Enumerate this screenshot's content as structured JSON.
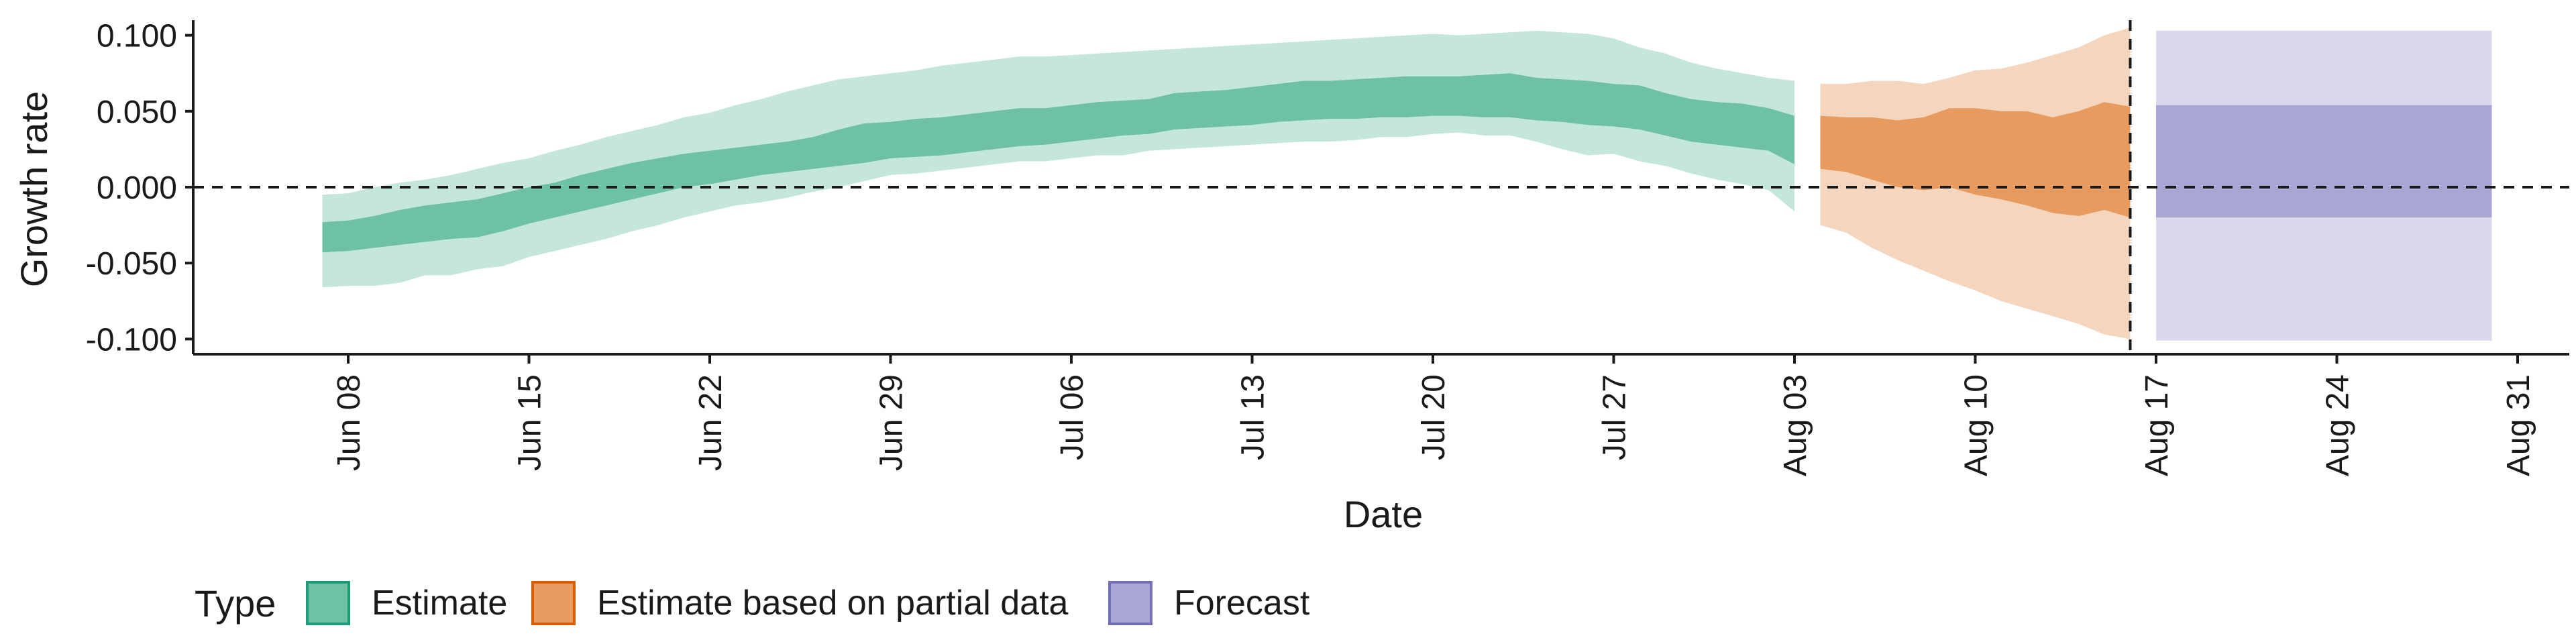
{
  "chart_data": {
    "type": "area",
    "ylabel": "Growth rate",
    "xlabel": "Date",
    "ylim": [
      -0.11,
      0.11
    ],
    "xlim": [
      "2020-06-02",
      "2020-09-02"
    ],
    "y_ticks": [
      0.1,
      0.05,
      0.0,
      -0.05,
      -0.1
    ],
    "y_tick_labels": [
      "0.100",
      "0.050",
      "0.000",
      "-0.050",
      "-0.100"
    ],
    "x_ticks": [
      "2020-06-08",
      "2020-06-15",
      "2020-06-22",
      "2020-06-29",
      "2020-07-06",
      "2020-07-13",
      "2020-07-20",
      "2020-07-27",
      "2020-08-03",
      "2020-08-10",
      "2020-08-17",
      "2020-08-24",
      "2020-08-31"
    ],
    "x_tick_labels": [
      "Jun 08",
      "Jun 15",
      "Jun 22",
      "Jun 29",
      "Jul 06",
      "Jul 13",
      "Jul 20",
      "Jul 27",
      "Aug 03",
      "Aug 10",
      "Aug 17",
      "Aug 24",
      "Aug 31"
    ],
    "reference_lines": {
      "horizontal_y": 0.0,
      "vertical_x": "2020-08-16"
    },
    "grid": false,
    "legend": {
      "title": "Type",
      "position": "bottom-left",
      "items": [
        {
          "label": "Estimate",
          "color": "#6fc1a5",
          "border": "#1b9e77"
        },
        {
          "label": "Estimate based on partial data",
          "color": "#e89b5e",
          "border": "#d95f02"
        },
        {
          "label": "Forecast",
          "color": "#a8a6d3",
          "border": "#7570b3"
        }
      ]
    },
    "series": [
      {
        "name": "Estimate",
        "color_inner": "#6fc1a5",
        "color_outer": "#c4e6db",
        "x": [
          "2020-06-07",
          "2020-06-08",
          "2020-06-09",
          "2020-06-10",
          "2020-06-11",
          "2020-06-12",
          "2020-06-13",
          "2020-06-14",
          "2020-06-15",
          "2020-06-16",
          "2020-06-17",
          "2020-06-18",
          "2020-06-19",
          "2020-06-20",
          "2020-06-21",
          "2020-06-22",
          "2020-06-23",
          "2020-06-24",
          "2020-06-25",
          "2020-06-26",
          "2020-06-27",
          "2020-06-28",
          "2020-06-29",
          "2020-06-30",
          "2020-07-01",
          "2020-07-02",
          "2020-07-03",
          "2020-07-04",
          "2020-07-05",
          "2020-07-06",
          "2020-07-07",
          "2020-07-08",
          "2020-07-09",
          "2020-07-10",
          "2020-07-11",
          "2020-07-12",
          "2020-07-13",
          "2020-07-14",
          "2020-07-15",
          "2020-07-16",
          "2020-07-17",
          "2020-07-18",
          "2020-07-19",
          "2020-07-20",
          "2020-07-21",
          "2020-07-22",
          "2020-07-23",
          "2020-07-24",
          "2020-07-25",
          "2020-07-26",
          "2020-07-27",
          "2020-07-28",
          "2020-07-29",
          "2020-07-30",
          "2020-07-31",
          "2020-08-01",
          "2020-08-02",
          "2020-08-03"
        ],
        "lower90": [
          -0.066,
          -0.065,
          -0.065,
          -0.063,
          -0.058,
          -0.058,
          -0.054,
          -0.052,
          -0.046,
          -0.042,
          -0.038,
          -0.034,
          -0.029,
          -0.025,
          -0.02,
          -0.016,
          -0.012,
          -0.01,
          -0.007,
          -0.003,
          0.0,
          0.004,
          0.008,
          0.009,
          0.011,
          0.013,
          0.015,
          0.017,
          0.017,
          0.019,
          0.021,
          0.021,
          0.024,
          0.025,
          0.026,
          0.027,
          0.028,
          0.029,
          0.03,
          0.03,
          0.031,
          0.033,
          0.033,
          0.035,
          0.036,
          0.034,
          0.034,
          0.03,
          0.025,
          0.021,
          0.022,
          0.017,
          0.014,
          0.009,
          0.005,
          0.002,
          -0.002,
          -0.016
        ],
        "lower50": [
          -0.043,
          -0.042,
          -0.04,
          -0.038,
          -0.036,
          -0.034,
          -0.033,
          -0.029,
          -0.024,
          -0.02,
          -0.016,
          -0.012,
          -0.008,
          -0.004,
          0.0,
          0.002,
          0.005,
          0.008,
          0.01,
          0.012,
          0.014,
          0.016,
          0.019,
          0.02,
          0.021,
          0.023,
          0.025,
          0.027,
          0.028,
          0.03,
          0.032,
          0.034,
          0.035,
          0.038,
          0.039,
          0.04,
          0.041,
          0.043,
          0.044,
          0.045,
          0.045,
          0.046,
          0.046,
          0.047,
          0.047,
          0.046,
          0.046,
          0.044,
          0.043,
          0.041,
          0.04,
          0.038,
          0.034,
          0.03,
          0.028,
          0.026,
          0.024,
          0.015
        ],
        "upper50": [
          -0.023,
          -0.022,
          -0.019,
          -0.015,
          -0.012,
          -0.01,
          -0.008,
          -0.004,
          0.0,
          0.003,
          0.008,
          0.012,
          0.016,
          0.019,
          0.022,
          0.024,
          0.026,
          0.028,
          0.03,
          0.033,
          0.038,
          0.042,
          0.043,
          0.045,
          0.046,
          0.048,
          0.05,
          0.052,
          0.052,
          0.054,
          0.056,
          0.057,
          0.058,
          0.062,
          0.063,
          0.064,
          0.066,
          0.068,
          0.07,
          0.07,
          0.071,
          0.072,
          0.073,
          0.073,
          0.073,
          0.074,
          0.075,
          0.072,
          0.071,
          0.07,
          0.068,
          0.067,
          0.062,
          0.058,
          0.056,
          0.055,
          0.052,
          0.047
        ],
        "upper90": [
          -0.005,
          -0.004,
          0.0,
          0.003,
          0.005,
          0.008,
          0.012,
          0.016,
          0.019,
          0.024,
          0.028,
          0.033,
          0.037,
          0.041,
          0.046,
          0.049,
          0.054,
          0.058,
          0.063,
          0.067,
          0.071,
          0.073,
          0.075,
          0.077,
          0.08,
          0.082,
          0.084,
          0.086,
          0.086,
          0.087,
          0.088,
          0.089,
          0.09,
          0.091,
          0.092,
          0.093,
          0.094,
          0.095,
          0.096,
          0.097,
          0.098,
          0.099,
          0.1,
          0.101,
          0.1,
          0.101,
          0.102,
          0.103,
          0.102,
          0.101,
          0.098,
          0.092,
          0.088,
          0.082,
          0.078,
          0.075,
          0.072,
          0.07
        ]
      },
      {
        "name": "Estimate based on partial data",
        "color_inner": "#e89b5e",
        "color_outer": "#f4d5be",
        "x": [
          "2020-08-04",
          "2020-08-05",
          "2020-08-06",
          "2020-08-07",
          "2020-08-08",
          "2020-08-09",
          "2020-08-10",
          "2020-08-11",
          "2020-08-12",
          "2020-08-13",
          "2020-08-14",
          "2020-08-15",
          "2020-08-16"
        ],
        "lower90": [
          -0.025,
          -0.03,
          -0.04,
          -0.048,
          -0.055,
          -0.062,
          -0.068,
          -0.075,
          -0.08,
          -0.085,
          -0.09,
          -0.097,
          -0.1
        ],
        "lower50": [
          0.012,
          0.01,
          0.005,
          0.0,
          -0.002,
          0.0,
          -0.005,
          -0.008,
          -0.012,
          -0.017,
          -0.019,
          -0.015,
          -0.02
        ],
        "upper50": [
          0.047,
          0.046,
          0.046,
          0.044,
          0.046,
          0.052,
          0.052,
          0.05,
          0.05,
          0.046,
          0.05,
          0.056,
          0.053
        ],
        "upper90": [
          0.068,
          0.068,
          0.07,
          0.07,
          0.068,
          0.072,
          0.077,
          0.078,
          0.082,
          0.087,
          0.092,
          0.1,
          0.105
        ]
      },
      {
        "name": "Forecast",
        "color_inner": "#a8a6d3",
        "color_outer": "#dad9ec",
        "x": [
          "2020-08-17",
          "2020-08-30"
        ],
        "lower90": [
          -0.101,
          -0.101
        ],
        "lower50": [
          -0.02,
          -0.02
        ],
        "upper50": [
          0.054,
          0.054
        ],
        "upper90": [
          0.103,
          0.103
        ]
      }
    ]
  }
}
